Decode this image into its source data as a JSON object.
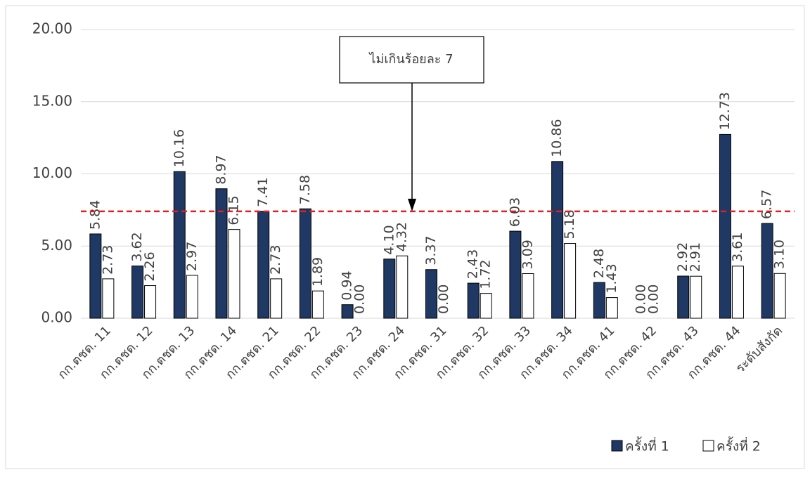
{
  "chart_data": {
    "type": "bar",
    "categories": [
      "กก.ตชด. 11",
      "กก.ตชด. 12",
      "กก.ตชด. 13",
      "กก.ตชด. 14",
      "กก.ตชด. 21",
      "กก.ตชด. 22",
      "กก.ตชด. 23",
      "กก.ตชด. 24",
      "กก.ตชด. 31",
      "กก.ตชด. 32",
      "กก.ตชด. 33",
      "กก.ตชด. 34",
      "กก.ตชด. 41",
      "กก.ตชด. 42",
      "กก.ตชด. 43",
      "กก.ตชด. 44",
      "ระดับสังกัด"
    ],
    "series": [
      {
        "name": "ครั้งที่ 1",
        "color": "#1f3864",
        "stroke": "#000000",
        "values": [
          5.84,
          3.62,
          10.16,
          8.97,
          7.41,
          7.58,
          0.94,
          4.1,
          3.37,
          2.43,
          6.03,
          10.86,
          2.48,
          0,
          2.92,
          12.73,
          6.57
        ],
        "value_labels": [
          "5.84",
          "3.62",
          "10.16",
          "8.97",
          "7.41",
          "7.58",
          "0.94",
          "4.10",
          "3.37",
          "2.43",
          "6.03",
          "10.86",
          "2.48",
          "0.00",
          "2.92",
          "12.73",
          "6.57"
        ]
      },
      {
        "name": "ครั้งที่ 2",
        "color": "#ffffff",
        "stroke": "#000000",
        "values": [
          2.73,
          2.26,
          2.97,
          6.15,
          2.73,
          1.89,
          0,
          4.32,
          0,
          1.72,
          3.09,
          5.18,
          1.43,
          0,
          2.91,
          3.61,
          3.1
        ],
        "value_labels": [
          "2.73",
          "2.26",
          "2.97",
          "6.15",
          "2.73",
          "1.89",
          "0.00",
          "4.32",
          "0.00",
          "1.72",
          "3.09",
          "5.18",
          "1.43",
          "0.00",
          "2.91",
          "3.61",
          "3.10"
        ]
      }
    ],
    "ylim": [
      0,
      20
    ],
    "yticks": [
      {
        "value": 0,
        "label": "0.00"
      },
      {
        "value": 5,
        "label": "5.00"
      },
      {
        "value": 10,
        "label": "10.00"
      },
      {
        "value": 15,
        "label": "15.00"
      },
      {
        "value": 20,
        "label": "20.00"
      }
    ],
    "grid": true,
    "reference_line": {
      "value": 7.4,
      "color": "#e02020"
    },
    "annotation": "ไม่เกินร้อยละ 7",
    "legend": "bottom-right"
  }
}
